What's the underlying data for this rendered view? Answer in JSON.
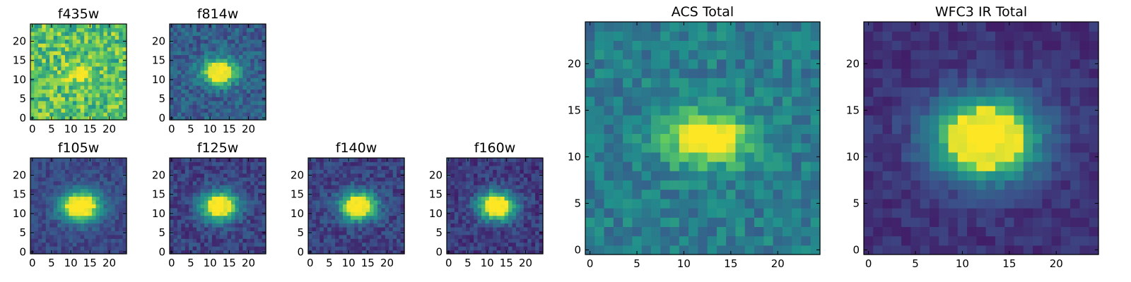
{
  "figure": {
    "colormap": "viridis",
    "colormap_stops": [
      "#440154",
      "#3b528b",
      "#21918c",
      "#5ec962",
      "#fde725"
    ]
  },
  "chart_data": [
    {
      "type": "heatmap",
      "title": "f435w",
      "grid_size": [
        25,
        25
      ],
      "xlim": [
        0,
        24
      ],
      "ylim": [
        0,
        24
      ],
      "xticks": [
        "0",
        "5",
        "10",
        "15",
        "20"
      ],
      "yticks": [
        "0",
        "5",
        "10",
        "15",
        "20"
      ],
      "background_level": 0.72,
      "noise_level": 0.22,
      "peak_level": 1.0,
      "source_center": [
        12.5,
        11.5
      ],
      "source_sigma": [
        2.0,
        1.6
      ],
      "seed": 3
    },
    {
      "type": "heatmap",
      "title": "f814w",
      "grid_size": [
        25,
        25
      ],
      "xlim": [
        0,
        24
      ],
      "ylim": [
        0,
        24
      ],
      "xticks": [
        "0",
        "5",
        "10",
        "15",
        "20"
      ],
      "yticks": [
        "0",
        "5",
        "10",
        "15",
        "20"
      ],
      "background_level": 0.3,
      "noise_level": 0.12,
      "peak_level": 1.0,
      "source_center": [
        12.5,
        12.0
      ],
      "source_sigma": [
        3.2,
        2.3
      ],
      "seed": 7
    },
    {
      "type": "heatmap",
      "title": "f105w",
      "grid_size": [
        25,
        25
      ],
      "xlim": [
        0,
        24
      ],
      "ylim": [
        0,
        24
      ],
      "xticks": [
        "0",
        "5",
        "10",
        "15",
        "20"
      ],
      "yticks": [
        "0",
        "5",
        "10",
        "15",
        "20"
      ],
      "background_level": 0.22,
      "noise_level": 0.08,
      "peak_level": 1.0,
      "source_center": [
        12.5,
        12.0
      ],
      "source_sigma": [
        3.6,
        2.8
      ],
      "seed": 11
    },
    {
      "type": "heatmap",
      "title": "f125w",
      "grid_size": [
        25,
        25
      ],
      "xlim": [
        0,
        24
      ],
      "ylim": [
        0,
        24
      ],
      "xticks": [
        "0",
        "5",
        "10",
        "15",
        "20"
      ],
      "yticks": [
        "0",
        "5",
        "10",
        "15",
        "20"
      ],
      "background_level": 0.2,
      "noise_level": 0.1,
      "peak_level": 1.0,
      "source_center": [
        12.5,
        12.0
      ],
      "source_sigma": [
        3.3,
        2.6
      ],
      "seed": 13
    },
    {
      "type": "heatmap",
      "title": "f140w",
      "grid_size": [
        25,
        25
      ],
      "xlim": [
        0,
        24
      ],
      "ylim": [
        0,
        24
      ],
      "xticks": [
        "0",
        "5",
        "10",
        "15",
        "20"
      ],
      "yticks": [
        "0",
        "5",
        "10",
        "15",
        "20"
      ],
      "background_level": 0.2,
      "noise_level": 0.1,
      "peak_level": 1.0,
      "source_center": [
        12.5,
        12.0
      ],
      "source_sigma": [
        3.3,
        2.6
      ],
      "seed": 17
    },
    {
      "type": "heatmap",
      "title": "f160w",
      "grid_size": [
        25,
        25
      ],
      "xlim": [
        0,
        24
      ],
      "ylim": [
        0,
        24
      ],
      "xticks": [
        "0",
        "5",
        "10",
        "15",
        "20"
      ],
      "yticks": [
        "0",
        "5",
        "10",
        "15",
        "20"
      ],
      "background_level": 0.18,
      "noise_level": 0.1,
      "peak_level": 1.0,
      "source_center": [
        12.5,
        12.0
      ],
      "source_sigma": [
        3.3,
        2.6
      ],
      "seed": 19
    },
    {
      "type": "heatmap",
      "title": "ACS Total",
      "grid_size": [
        25,
        25
      ],
      "xlim": [
        0,
        24
      ],
      "ylim": [
        0,
        24
      ],
      "xticks": [
        "0",
        "5",
        "10",
        "15",
        "20"
      ],
      "yticks": [
        "0",
        "5",
        "10",
        "15",
        "20"
      ],
      "background_level": 0.42,
      "noise_level": 0.12,
      "peak_level": 1.0,
      "source_center": [
        12.5,
        12.0
      ],
      "source_sigma": [
        3.2,
        2.0
      ],
      "seed": 23
    },
    {
      "type": "heatmap",
      "title": "WFC3 IR Total",
      "grid_size": [
        25,
        25
      ],
      "xlim": [
        0,
        24
      ],
      "ylim": [
        0,
        24
      ],
      "xticks": [
        "0",
        "5",
        "10",
        "15",
        "20"
      ],
      "yticks": [
        "0",
        "5",
        "10",
        "15",
        "20"
      ],
      "background_level": 0.15,
      "noise_level": 0.06,
      "peak_level": 1.0,
      "source_center": [
        12.5,
        12.0
      ],
      "source_sigma": [
        3.8,
        3.0
      ],
      "seed": 29
    }
  ]
}
